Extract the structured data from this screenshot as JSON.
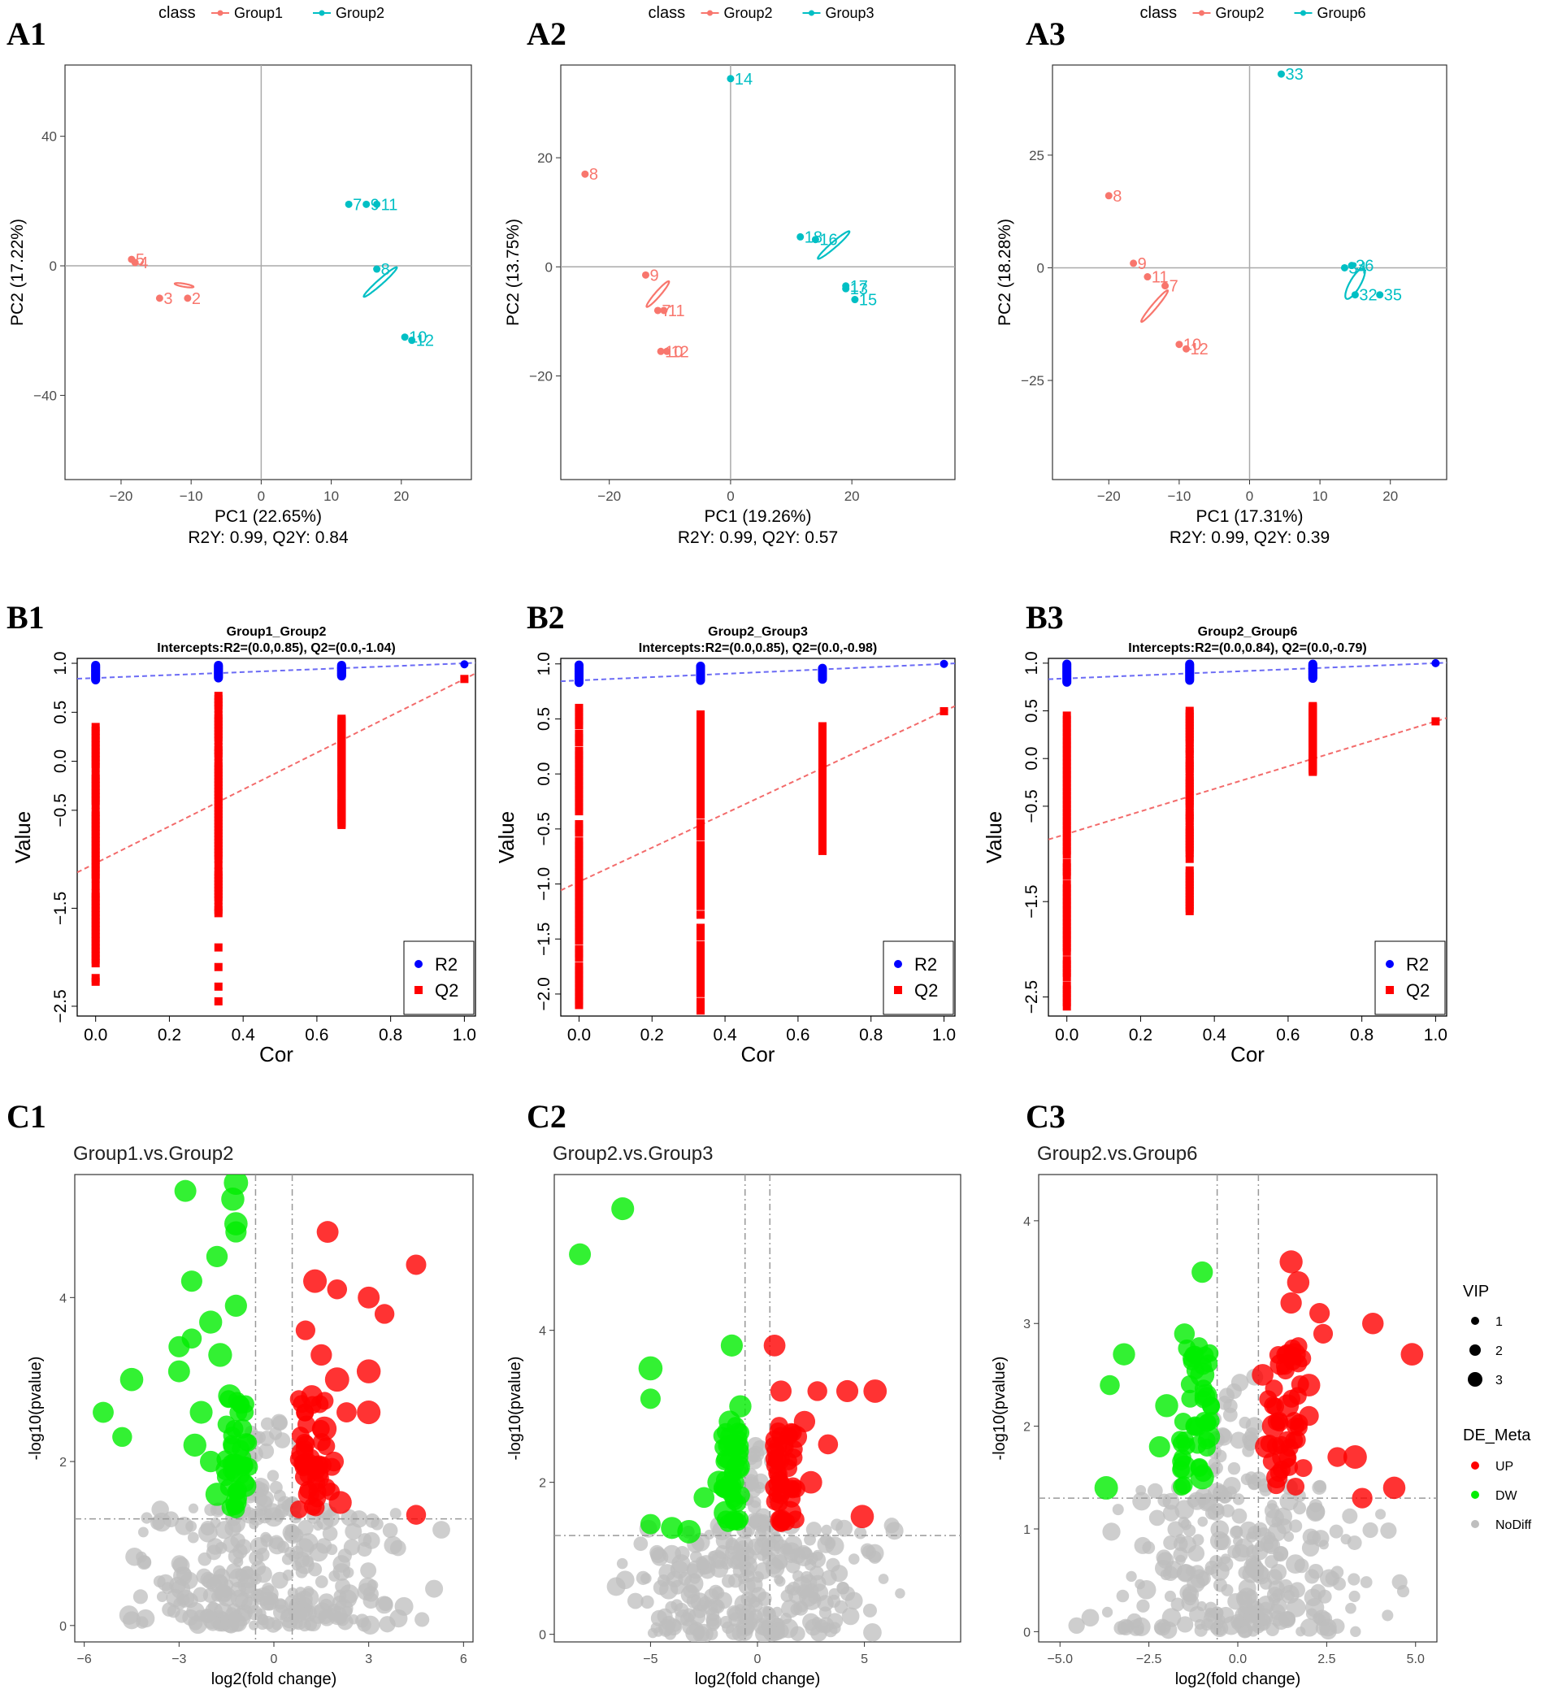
{
  "colors": {
    "group_a": "#F8766D",
    "group_b": "#00BFC4",
    "r2": "#0000FF",
    "q2": "#FF0000",
    "up": "#FF0000",
    "dw": "#00EE00",
    "nodiff": "#BEBEBE"
  },
  "chart_data": [
    {
      "panel": "A1",
      "type": "scatter",
      "legend_title": "class",
      "legend": [
        "Group1",
        "Group2"
      ],
      "xlabel": "PC1 (22.65%)",
      "ylabel": "PC2 (17.22%)",
      "footer": "R2Y: 0.99, Q2Y: 0.84",
      "xlim": [
        -28,
        30
      ],
      "ylim": [
        -66,
        62
      ],
      "xticks": [
        -20,
        -10,
        0,
        10,
        20
      ],
      "yticks": [
        -40,
        0,
        40
      ],
      "series": [
        {
          "name": "Group1",
          "ellipse": {
            "cx": -11,
            "cy": -6,
            "a": 16,
            "b": 5,
            "angle": -22
          },
          "points": [
            {
              "x": -18.5,
              "y": 2,
              "label": "5"
            },
            {
              "x": -18,
              "y": 1,
              "label": "4"
            },
            {
              "x": -14.5,
              "y": -10,
              "label": "3"
            },
            {
              "x": -10.5,
              "y": -10,
              "label": "2"
            }
          ]
        },
        {
          "name": "Group2",
          "ellipse": {
            "cx": 17,
            "cy": -5,
            "a": 57,
            "b": 5.5,
            "angle": 63
          },
          "points": [
            {
              "x": 12.5,
              "y": 19,
              "label": "7"
            },
            {
              "x": 15,
              "y": 19,
              "label": "9"
            },
            {
              "x": 16.5,
              "y": 19,
              "label": "11"
            },
            {
              "x": 16.5,
              "y": -1,
              "label": "8"
            },
            {
              "x": 20.5,
              "y": -22,
              "label": "10"
            },
            {
              "x": 21.5,
              "y": -23,
              "label": "12"
            }
          ]
        }
      ]
    },
    {
      "panel": "A2",
      "type": "scatter",
      "legend_title": "class",
      "legend": [
        "Group2",
        "Group3"
      ],
      "xlabel": "PC1 (19.26%)",
      "ylabel": "PC2 (13.75%)",
      "footer": "R2Y: 0.99, Q2Y: 0.57",
      "xlim": [
        -28,
        37
      ],
      "ylim": [
        -39,
        37
      ],
      "xticks": [
        -20,
        0,
        20
      ],
      "yticks": [
        -20,
        0,
        20
      ],
      "series": [
        {
          "name": "Group2",
          "ellipse": {
            "cx": -12,
            "cy": -5,
            "a": 33,
            "b": 5,
            "angle": 52
          },
          "points": [
            {
              "x": -24,
              "y": 17,
              "label": "8"
            },
            {
              "x": -14,
              "y": -1.5,
              "label": "9"
            },
            {
              "x": -12,
              "y": -8,
              "label": "7"
            },
            {
              "x": -11,
              "y": -8,
              "label": "11"
            },
            {
              "x": -11.5,
              "y": -15.5,
              "label": "10"
            },
            {
              "x": -10.5,
              "y": -15.5,
              "label": "12"
            }
          ]
        },
        {
          "name": "Group3",
          "ellipse": {
            "cx": 17,
            "cy": 4,
            "a": 40,
            "b": 5.5,
            "angle": 44
          },
          "points": [
            {
              "x": 0,
              "y": 34.5,
              "label": "14"
            },
            {
              "x": 11.5,
              "y": 5.5,
              "label": "18"
            },
            {
              "x": 14,
              "y": 5,
              "label": "16"
            },
            {
              "x": 19,
              "y": -3.5,
              "label": "17"
            },
            {
              "x": 19,
              "y": -4,
              "label": "13"
            },
            {
              "x": 20.5,
              "y": -6,
              "label": "15"
            }
          ]
        }
      ]
    },
    {
      "panel": "A3",
      "type": "scatter",
      "legend_title": "class",
      "legend": [
        "Group2",
        "Group6"
      ],
      "xlabel": "PC1 (17.31%)",
      "ylabel": "PC2 (18.28%)",
      "footer": "R2Y: 0.99, Q2Y: 0.39",
      "xlim": [
        -28,
        28
      ],
      "ylim": [
        -47,
        45
      ],
      "xticks": [
        -20,
        -10,
        0,
        10,
        20
      ],
      "yticks": [
        -25,
        0,
        25
      ],
      "series": [
        {
          "name": "Group2",
          "ellipse": {
            "cx": -13.5,
            "cy": -8.5,
            "a": 44,
            "b": 4.5,
            "angle": 62
          },
          "points": [
            {
              "x": -20,
              "y": 16,
              "label": "8"
            },
            {
              "x": -16.5,
              "y": 1,
              "label": "9"
            },
            {
              "x": -14.5,
              "y": -2,
              "label": "11"
            },
            {
              "x": -12,
              "y": -4,
              "label": "7"
            },
            {
              "x": -10,
              "y": -17,
              "label": "10"
            },
            {
              "x": -9,
              "y": -18,
              "label": "12"
            }
          ]
        },
        {
          "name": "Group6",
          "ellipse": {
            "cx": 15,
            "cy": -3.5,
            "a": 40,
            "b": 9,
            "angle": 71
          },
          "points": [
            {
              "x": 4.5,
              "y": 43,
              "label": "33"
            },
            {
              "x": 13.5,
              "y": 0,
              "label": "34"
            },
            {
              "x": 14.5,
              "y": 0.5,
              "label": "36"
            },
            {
              "x": 15,
              "y": -6,
              "label": "32"
            },
            {
              "x": 18.5,
              "y": -6,
              "label": "35"
            }
          ]
        }
      ]
    },
    {
      "panel": "B1",
      "type": "scatter",
      "title": "Group1_Group2",
      "subtitle": "Intercepts:R2=(0.0,0.85), Q2=(0.0,-1.04)",
      "xlabel": "Cor",
      "ylabel": "Value",
      "xlim": [
        -0.05,
        1.03
      ],
      "ylim": [
        -2.6,
        1.05
      ],
      "xticks": [
        0.0,
        0.2,
        0.4,
        0.6,
        0.8,
        1.0
      ],
      "yticks": [
        -2.5,
        -1.5,
        -0.5,
        0.0,
        0.5,
        1.0
      ],
      "legend": [
        "R2",
        "Q2"
      ],
      "r2_line": [
        0.85,
        1.0
      ],
      "q2_line": [
        -1.04,
        0.84
      ],
      "r2_clusters": [
        {
          "x": 0.0,
          "ymin": 0.83,
          "ymax": 0.98
        },
        {
          "x": 0.333,
          "ymin": 0.85,
          "ymax": 0.98
        },
        {
          "x": 0.667,
          "ymin": 0.87,
          "ymax": 0.98
        }
      ],
      "r2_final": 0.99,
      "q2_clusters": [
        {
          "x": 0.0,
          "ymin": -2.25,
          "ymax": 0.35
        },
        {
          "x": 0.333,
          "ymin": -1.55,
          "ymax": 0.7
        },
        {
          "x": 0.667,
          "ymin": -0.65,
          "ymax": 0.45
        }
      ],
      "q2_outliers": [
        {
          "x": 0.333,
          "y": -1.9
        },
        {
          "x": 0.333,
          "y": -2.1
        },
        {
          "x": 0.333,
          "y": -2.3
        },
        {
          "x": 0.333,
          "y": -2.45
        }
      ],
      "q2_final": 0.84
    },
    {
      "panel": "B2",
      "type": "scatter",
      "title": "Group2_Group3",
      "subtitle": "Intercepts:R2=(0.0,0.85), Q2=(0.0,-0.98)",
      "xlabel": "Cor",
      "ylabel": "Value",
      "xlim": [
        -0.05,
        1.03
      ],
      "ylim": [
        -2.2,
        1.05
      ],
      "xticks": [
        0.0,
        0.2,
        0.4,
        0.6,
        0.8,
        1.0
      ],
      "yticks": [
        -2.0,
        -1.5,
        -1.0,
        -0.5,
        0.0,
        0.5,
        1.0
      ],
      "legend": [
        "R2",
        "Q2"
      ],
      "r2_line": [
        0.85,
        1.0
      ],
      "q2_line": [
        -0.98,
        0.57
      ],
      "r2_clusters": [
        {
          "x": 0.0,
          "ymin": 0.83,
          "ymax": 0.99
        },
        {
          "x": 0.333,
          "ymin": 0.85,
          "ymax": 0.98
        },
        {
          "x": 0.667,
          "ymin": 0.86,
          "ymax": 0.96
        }
      ],
      "r2_final": 1.0,
      "q2_clusters": [
        {
          "x": 0.0,
          "ymin": -2.1,
          "ymax": 0.6
        },
        {
          "x": 0.333,
          "ymin": -2.15,
          "ymax": 0.58
        },
        {
          "x": 0.667,
          "ymin": -0.7,
          "ymax": 0.45
        }
      ],
      "q2_outliers": [],
      "q2_final": 0.57
    },
    {
      "panel": "B3",
      "type": "scatter",
      "title": "Group2_Group6",
      "subtitle": "Intercepts:R2=(0.0,0.84), Q2=(0.0,-0.79)",
      "xlabel": "Cor",
      "ylabel": "Value",
      "xlim": [
        -0.05,
        1.03
      ],
      "ylim": [
        -2.7,
        1.05
      ],
      "xticks": [
        0.0,
        0.2,
        0.4,
        0.6,
        0.8,
        1.0
      ],
      "yticks": [
        -2.5,
        -1.5,
        -0.5,
        0.0,
        0.5,
        1.0
      ],
      "legend": [
        "R2",
        "Q2"
      ],
      "r2_line": [
        0.84,
        1.0
      ],
      "q2_line": [
        -0.79,
        0.39
      ],
      "r2_clusters": [
        {
          "x": 0.0,
          "ymin": 0.8,
          "ymax": 0.99
        },
        {
          "x": 0.333,
          "ymin": 0.82,
          "ymax": 0.99
        },
        {
          "x": 0.667,
          "ymin": 0.84,
          "ymax": 0.99
        }
      ],
      "r2_final": 1.0,
      "q2_clusters": [
        {
          "x": 0.0,
          "ymin": -2.6,
          "ymax": 0.45
        },
        {
          "x": 0.333,
          "ymin": -1.6,
          "ymax": 0.5
        },
        {
          "x": 0.667,
          "ymin": -0.15,
          "ymax": 0.55
        }
      ],
      "q2_outliers": [],
      "q2_final": 0.39
    },
    {
      "panel": "C1",
      "type": "scatter",
      "title": "Group1.vs.Group2",
      "xlabel": "log2(fold change)",
      "ylabel": "-log10(pvalue)",
      "xlim": [
        -6.3,
        6.3
      ],
      "ylim": [
        -0.2,
        5.5
      ],
      "xticks": [
        -6,
        -3,
        0,
        3,
        6
      ],
      "yticks": [
        0,
        2,
        4
      ],
      "vlines": [
        -0.58,
        0.58
      ],
      "hline": 1.3,
      "nodiff_cloud": {
        "xmin": -3.5,
        "xmax": 4.0,
        "ymin": 0.0,
        "ymax": 1.3
      },
      "up_points": [
        [
          4.5,
          4.4
        ],
        [
          3.0,
          4.0
        ],
        [
          3.5,
          3.8
        ],
        [
          2.0,
          4.1
        ],
        [
          1.7,
          4.8
        ],
        [
          1.3,
          4.2
        ],
        [
          3.0,
          3.1
        ],
        [
          3.0,
          2.6
        ],
        [
          2.3,
          2.6
        ],
        [
          4.5,
          1.35
        ],
        [
          1.0,
          3.6
        ],
        [
          1.5,
          3.3
        ],
        [
          2.0,
          3.0
        ],
        [
          1.2,
          2.8
        ],
        [
          1.6,
          2.4
        ],
        [
          1.9,
          2.0
        ],
        [
          1.4,
          1.8
        ],
        [
          1.1,
          1.6
        ],
        [
          2.1,
          1.5
        ],
        [
          0.9,
          2.1
        ]
      ],
      "dw_points": [
        [
          -1.2,
          5.4
        ],
        [
          -1.3,
          5.2
        ],
        [
          -2.8,
          5.3
        ],
        [
          -1.2,
          4.9
        ],
        [
          -1.2,
          4.8
        ],
        [
          -1.8,
          4.5
        ],
        [
          -2.6,
          4.2
        ],
        [
          -1.2,
          3.9
        ],
        [
          -3.0,
          3.4
        ],
        [
          -2.6,
          3.5
        ],
        [
          -2.0,
          3.7
        ],
        [
          -4.5,
          3.0
        ],
        [
          -3.0,
          3.1
        ],
        [
          -5.4,
          2.6
        ],
        [
          -4.8,
          2.3
        ],
        [
          -1.7,
          3.3
        ],
        [
          -1.4,
          2.8
        ],
        [
          -2.3,
          2.6
        ],
        [
          -2.5,
          2.2
        ],
        [
          -2.0,
          2.0
        ],
        [
          -1.0,
          2.4
        ],
        [
          -1.5,
          1.9
        ],
        [
          -1.8,
          1.6
        ],
        [
          -0.9,
          1.7
        ],
        [
          -1.2,
          1.5
        ]
      ]
    },
    {
      "panel": "C2",
      "type": "scatter",
      "title": "Group2.vs.Group3",
      "xlabel": "log2(fold change)",
      "ylabel": "-log10(pvalue)",
      "xlim": [
        -9.5,
        9.5
      ],
      "ylim": [
        -0.1,
        6.05
      ],
      "xticks": [
        -5,
        0,
        5
      ],
      "yticks": [
        0,
        2,
        4
      ],
      "vlines": [
        -0.58,
        0.58
      ],
      "hline": 1.3,
      "nodiff_cloud": {
        "xmin": -5.0,
        "xmax": 5.0,
        "ymin": 0.0,
        "ymax": 1.3
      },
      "up_points": [
        [
          0.8,
          3.8
        ],
        [
          1.1,
          3.2
        ],
        [
          2.8,
          3.2
        ],
        [
          4.2,
          3.2
        ],
        [
          5.5,
          3.2
        ],
        [
          2.2,
          2.8
        ],
        [
          3.3,
          2.5
        ],
        [
          1.8,
          2.6
        ],
        [
          1.0,
          2.3
        ],
        [
          2.5,
          2.0
        ],
        [
          1.2,
          1.9
        ],
        [
          1.5,
          1.6
        ],
        [
          1.1,
          1.5
        ],
        [
          4.9,
          1.55
        ]
      ],
      "dw_points": [
        [
          -6.3,
          5.6
        ],
        [
          -8.3,
          5.0
        ],
        [
          -1.2,
          3.8
        ],
        [
          -5.0,
          3.5
        ],
        [
          -5.0,
          3.1
        ],
        [
          -0.8,
          3.0
        ],
        [
          -1.3,
          2.8
        ],
        [
          -1.1,
          2.5
        ],
        [
          -0.9,
          2.2
        ],
        [
          -1.8,
          2.0
        ],
        [
          -2.5,
          1.8
        ],
        [
          -1.5,
          1.6
        ],
        [
          -5.0,
          1.45
        ],
        [
          -4.0,
          1.4
        ],
        [
          -3.2,
          1.35
        ],
        [
          -1.1,
          1.5
        ]
      ]
    },
    {
      "panel": "C3",
      "type": "scatter",
      "title": "Group2.vs.Group6",
      "xlabel": "log2(fold change)",
      "ylabel": "-log10(pvalue)",
      "xlim": [
        -5.6,
        5.6
      ],
      "ylim": [
        -0.1,
        4.45
      ],
      "xticks": [
        -5.0,
        -2.5,
        0.0,
        2.5,
        5.0
      ],
      "yticks": [
        0,
        1,
        2,
        3,
        4
      ],
      "vlines": [
        -0.58,
        0.58
      ],
      "hline": 1.3,
      "nodiff_cloud": {
        "xmin": -3.3,
        "xmax": 3.5,
        "ymin": 0.0,
        "ymax": 1.3
      },
      "up_points": [
        [
          1.5,
          3.6
        ],
        [
          1.7,
          3.4
        ],
        [
          1.5,
          3.2
        ],
        [
          2.3,
          3.1
        ],
        [
          2.4,
          2.9
        ],
        [
          3.8,
          3.0
        ],
        [
          4.9,
          2.7
        ],
        [
          1.6,
          2.7
        ],
        [
          1.2,
          2.6
        ],
        [
          0.7,
          2.5
        ],
        [
          2.0,
          2.4
        ],
        [
          1.4,
          2.2
        ],
        [
          2.0,
          2.1
        ],
        [
          1.0,
          2.0
        ],
        [
          0.8,
          1.8
        ],
        [
          1.3,
          1.7
        ],
        [
          2.8,
          1.7
        ],
        [
          3.3,
          1.7
        ],
        [
          1.1,
          1.5
        ],
        [
          3.5,
          1.3
        ],
        [
          4.4,
          1.4
        ]
      ],
      "dw_points": [
        [
          -1.0,
          3.5
        ],
        [
          -1.5,
          2.9
        ],
        [
          -3.2,
          2.7
        ],
        [
          -3.6,
          2.4
        ],
        [
          -1.0,
          2.5
        ],
        [
          -2.0,
          2.2
        ],
        [
          -0.9,
          2.3
        ],
        [
          -1.2,
          2.0
        ],
        [
          -2.2,
          1.8
        ],
        [
          -0.8,
          1.9
        ],
        [
          -1.5,
          1.6
        ],
        [
          -3.7,
          1.4
        ],
        [
          -1.0,
          1.5
        ]
      ]
    }
  ],
  "panel_labels": [
    "A1",
    "A2",
    "A3",
    "B1",
    "B2",
    "B3",
    "C1",
    "C2",
    "C3"
  ],
  "volcano_legend": {
    "vip_title": "VIP",
    "vip_labels": [
      "1",
      "2",
      "3"
    ],
    "de_title": "DE_Meta",
    "de_labels": [
      "UP",
      "DW",
      "NoDiff"
    ]
  }
}
